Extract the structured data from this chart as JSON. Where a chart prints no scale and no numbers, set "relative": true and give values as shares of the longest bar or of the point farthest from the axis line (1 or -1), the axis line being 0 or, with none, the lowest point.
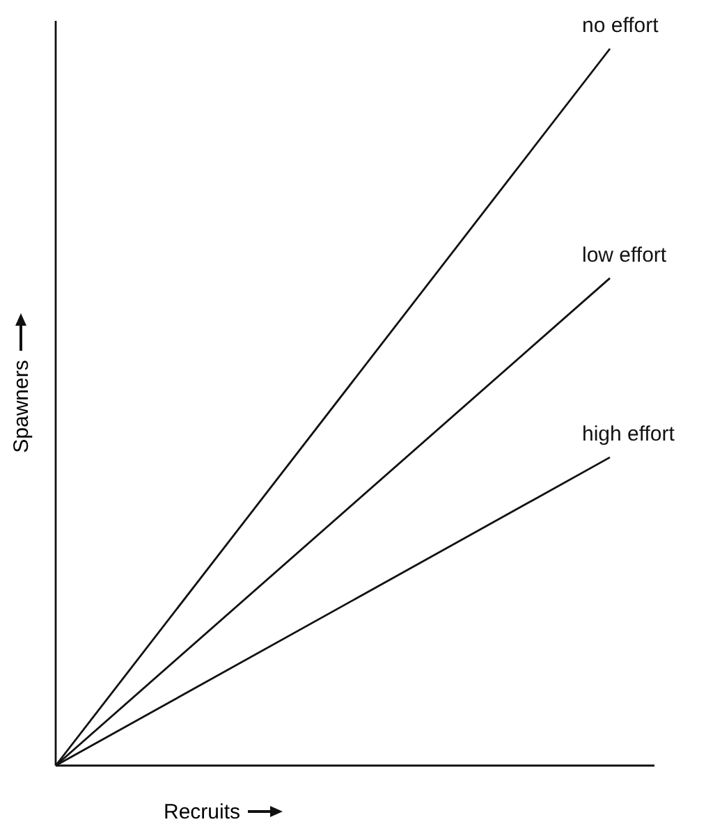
{
  "chart_data": {
    "type": "line",
    "relative": true,
    "xlabel": "Recruits",
    "ylabel": "Spawners",
    "categories": [
      null,
      null
    ],
    "marker": "none",
    "series": [
      {
        "name": "no effort",
        "color": "#111111",
        "values": [
          0,
          1
        ]
      },
      {
        "name": "low effort",
        "color": "#111111",
        "values": [
          0,
          0.68
        ]
      },
      {
        "name": "high effort",
        "color": "#111111",
        "values": [
          0,
          0.43
        ]
      }
    ]
  }
}
